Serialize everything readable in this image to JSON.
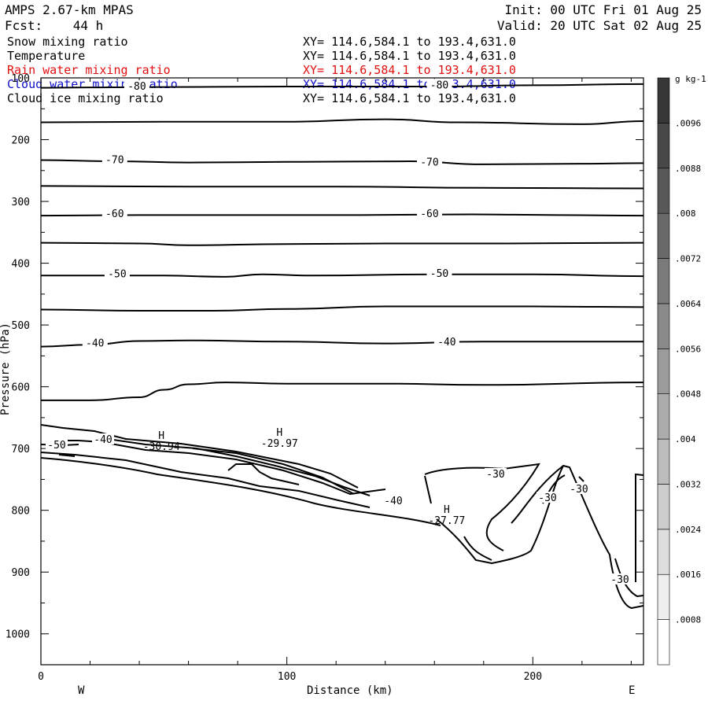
{
  "header": {
    "title": "AMPS 2.67-km MPAS",
    "forecast": "Fcst:    44 h",
    "init": "Init: 00 UTC Fri 01 Aug 25",
    "valid": "Valid: 20 UTC Sat 02 Aug 25"
  },
  "fields": [
    {
      "name": "Snow mixing ratio",
      "xy": "XY= 114.6,584.1 to 193.4,631.0",
      "color": "#000000"
    },
    {
      "name": "Temperature",
      "xy": "XY= 114.6,584.1 to 193.4,631.0",
      "color": "#000000"
    },
    {
      "name": "Rain water mixing ratio",
      "xy": "XY= 114.6,584.1 to 193.4,631.0",
      "color": "#e01010"
    },
    {
      "name": "Cloud water mixing ratio",
      "xy": "XY= 114.6,584.1 to 193.4,631.0",
      "color": "#1010c8"
    },
    {
      "name": "Cloud ice mixing ratio",
      "xy": "XY= 114.6,584.1 to 193.4,631.0",
      "color": "#000000"
    }
  ],
  "chart_data": {
    "type": "contour",
    "xlabel": "Distance (km)",
    "ylabel": "Pressure (hPa)",
    "xlim": [
      0,
      245
    ],
    "ylim": [
      1050,
      100
    ],
    "x_ticks": [
      0,
      100,
      200
    ],
    "y_ticks": [
      100,
      200,
      300,
      400,
      500,
      600,
      700,
      800,
      900,
      1000
    ],
    "left_end_label": "W",
    "right_end_label": "E",
    "isotherms": [
      {
        "value": -80,
        "label": "-80",
        "points": [
          [
            0,
            116
          ],
          [
            40,
            115
          ],
          [
            100,
            114
          ],
          [
            160,
            114
          ],
          [
            200,
            112
          ],
          [
            245,
            110
          ]
        ],
        "labels_at": [
          [
            39,
            114
          ],
          [
            162,
            112
          ]
        ]
      },
      {
        "value": -75,
        "label": "",
        "points": [
          [
            0,
            172
          ],
          [
            50,
            171
          ],
          [
            100,
            171
          ],
          [
            140,
            167
          ],
          [
            170,
            172
          ],
          [
            220,
            175
          ],
          [
            245,
            170
          ]
        ]
      },
      {
        "value": -70,
        "label": "-70",
        "points": [
          [
            0,
            233
          ],
          [
            30,
            235
          ],
          [
            60,
            237
          ],
          [
            100,
            236
          ],
          [
            150,
            235
          ],
          [
            180,
            240
          ],
          [
            220,
            239
          ],
          [
            245,
            238
          ]
        ],
        "labels_at": [
          [
            30,
            233
          ],
          [
            158,
            237
          ]
        ]
      },
      {
        "value": -65,
        "label": "",
        "points": [
          [
            0,
            275
          ],
          [
            60,
            276
          ],
          [
            120,
            276
          ],
          [
            180,
            278
          ],
          [
            245,
            279
          ]
        ]
      },
      {
        "value": -60,
        "label": "-60",
        "points": [
          [
            0,
            323
          ],
          [
            40,
            322
          ],
          [
            80,
            322
          ],
          [
            130,
            322
          ],
          [
            175,
            321
          ],
          [
            210,
            322
          ],
          [
            245,
            323
          ]
        ],
        "labels_at": [
          [
            30,
            320
          ],
          [
            158,
            320
          ]
        ]
      },
      {
        "value": -55,
        "label": "",
        "points": [
          [
            0,
            367
          ],
          [
            40,
            368
          ],
          [
            60,
            371
          ],
          [
            100,
            369
          ],
          [
            140,
            368
          ],
          [
            190,
            368
          ],
          [
            245,
            367
          ]
        ]
      },
      {
        "value": -50,
        "label": "-50",
        "points": [
          [
            0,
            420
          ],
          [
            50,
            420
          ],
          [
            75,
            422
          ],
          [
            90,
            418
          ],
          [
            110,
            420
          ],
          [
            160,
            418
          ],
          [
            200,
            418
          ],
          [
            245,
            421
          ]
        ],
        "labels_at": [
          [
            31,
            418
          ],
          [
            162,
            417
          ]
        ]
      },
      {
        "value": -45,
        "label": "",
        "points": [
          [
            0,
            475
          ],
          [
            40,
            477
          ],
          [
            70,
            477
          ],
          [
            100,
            474
          ],
          [
            140,
            470
          ],
          [
            200,
            470
          ],
          [
            245,
            471
          ]
        ]
      },
      {
        "value": -40,
        "label": "-40",
        "points": [
          [
            0,
            535
          ],
          [
            20,
            532
          ],
          [
            40,
            526
          ],
          [
            60,
            525
          ],
          [
            100,
            527
          ],
          [
            140,
            530
          ],
          [
            180,
            527
          ],
          [
            245,
            527
          ]
        ],
        "labels_at": [
          [
            22,
            530
          ],
          [
            165,
            528
          ]
        ]
      },
      {
        "value": -35,
        "label": "",
        "points": [
          [
            0,
            622
          ],
          [
            20,
            622
          ],
          [
            40,
            617
          ],
          [
            50,
            605
          ],
          [
            60,
            596
          ],
          [
            75,
            593
          ],
          [
            100,
            595
          ],
          [
            140,
            595
          ],
          [
            180,
            597
          ],
          [
            245,
            593
          ]
        ]
      }
    ],
    "extrema": [
      {
        "type": "H",
        "value": -30.94,
        "label": "-30.94",
        "x": 49,
        "p": 697
      },
      {
        "type": "H",
        "value": -29.97,
        "label": "-29.97",
        "x": 97,
        "p": 692
      },
      {
        "type": "H",
        "value": -27.77,
        "label": "-27.77",
        "x": 165,
        "p": 817
      }
    ],
    "low_level_labels": [
      "-50",
      "-40",
      "-40",
      "-30",
      "-30",
      "-30",
      "-30"
    ],
    "colorbar": {
      "units": "g kg-1",
      "levels": [
        ".0008",
        ".0016",
        ".0024",
        ".0032",
        ".004",
        ".0048",
        ".0056",
        ".0064",
        ".0072",
        ".008",
        ".0088",
        ".0096"
      ]
    }
  }
}
